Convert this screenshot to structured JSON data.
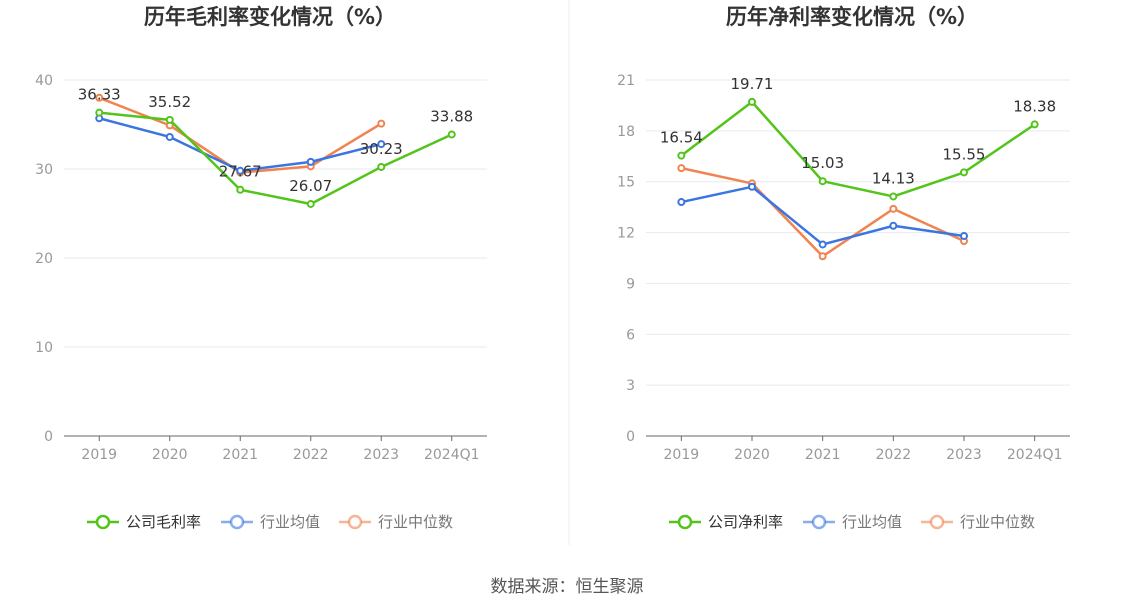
{
  "source": "数据来源：恒生聚源",
  "chart_data": [
    {
      "type": "line",
      "title": "历年毛利率变化情况（%）",
      "categories": [
        "2019",
        "2020",
        "2021",
        "2022",
        "2023",
        "2024Q1"
      ],
      "ylim": [
        0,
        40
      ],
      "yticks": [
        0,
        10,
        20,
        30,
        40
      ],
      "grid": true,
      "legend_position": "bottom",
      "series": [
        {
          "name": "公司毛利率",
          "color": "#52c41a",
          "values": [
            36.33,
            35.52,
            27.67,
            26.07,
            30.23,
            33.88
          ],
          "labels": [
            "36.33",
            "35.52",
            "27.67",
            "26.07",
            "30.23",
            "33.88"
          ]
        },
        {
          "name": "行业均值",
          "color": "#3a75e0",
          "values": [
            35.7,
            33.6,
            29.8,
            30.8,
            32.8,
            null
          ]
        },
        {
          "name": "行业中位数",
          "color": "#f0834f",
          "values": [
            38.0,
            34.9,
            29.6,
            30.3,
            35.1,
            null
          ]
        }
      ]
    },
    {
      "type": "line",
      "title": "历年净利率变化情况（%）",
      "categories": [
        "2019",
        "2020",
        "2021",
        "2022",
        "2023",
        "2024Q1"
      ],
      "ylim": [
        0,
        21
      ],
      "yticks": [
        0,
        3,
        6,
        9,
        12,
        15,
        18,
        21
      ],
      "grid": true,
      "legend_position": "bottom",
      "series": [
        {
          "name": "公司净利率",
          "color": "#52c41a",
          "values": [
            16.54,
            19.71,
            15.03,
            14.13,
            15.55,
            18.38
          ],
          "labels": [
            "16.54",
            "19.71",
            "15.03",
            "14.13",
            "15.55",
            "18.38"
          ]
        },
        {
          "name": "行业均值",
          "color": "#3a75e0",
          "values": [
            13.8,
            14.7,
            11.3,
            12.4,
            11.8,
            null
          ]
        },
        {
          "name": "行业中位数",
          "color": "#f0834f",
          "values": [
            15.8,
            14.9,
            10.6,
            13.4,
            11.5,
            null
          ]
        }
      ]
    }
  ]
}
